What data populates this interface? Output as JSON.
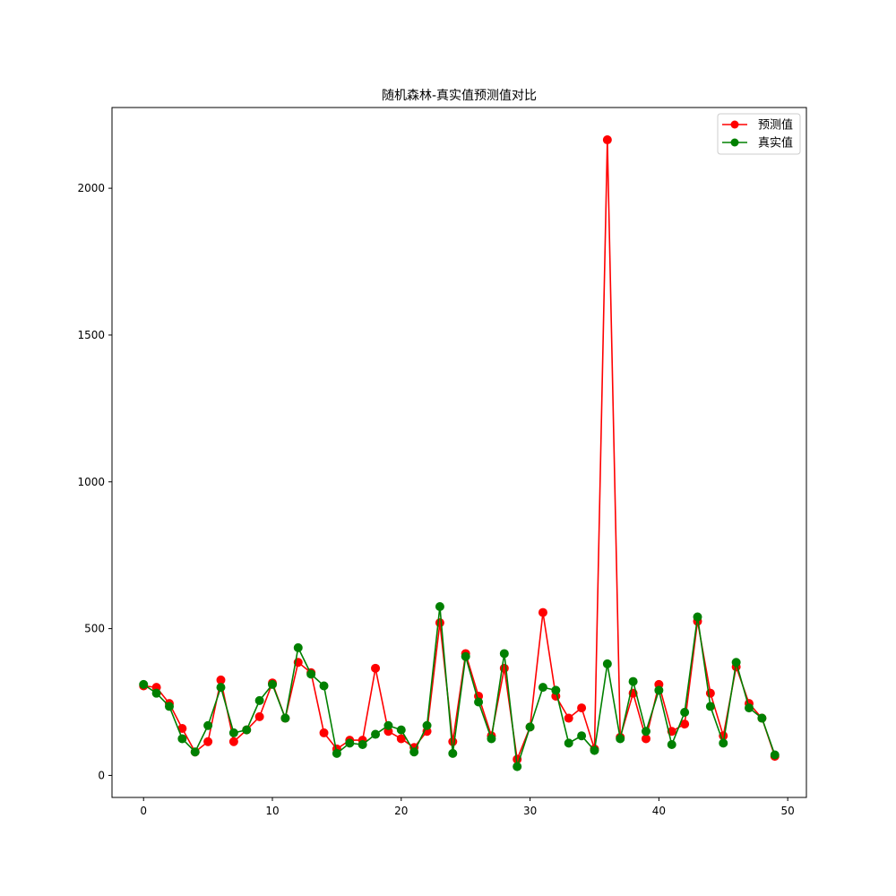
{
  "chart_data": {
    "type": "line",
    "title": "随机森林-真实值预测值对比",
    "xlabel": "",
    "ylabel": "",
    "xlim": [
      -2.45,
      51.45
    ],
    "ylim": [
      -75,
      2275
    ],
    "xticks": [
      0,
      10,
      20,
      30,
      40,
      50
    ],
    "yticks": [
      0,
      500,
      1000,
      1500,
      2000
    ],
    "x": [
      0,
      1,
      2,
      3,
      4,
      5,
      6,
      7,
      8,
      9,
      10,
      11,
      12,
      13,
      14,
      15,
      16,
      17,
      18,
      19,
      20,
      21,
      22,
      23,
      24,
      25,
      26,
      27,
      28,
      29,
      30,
      31,
      32,
      33,
      34,
      35,
      36,
      37,
      38,
      39,
      40,
      41,
      42,
      43,
      44,
      45,
      46,
      47,
      48,
      49
    ],
    "grid": false,
    "legend_position": "top-right",
    "series": [
      {
        "name": "预测值",
        "color": "#ff0000",
        "marker": "circle",
        "values": [
          305,
          300,
          245,
          160,
          80,
          115,
          325,
          115,
          155,
          200,
          315,
          195,
          385,
          350,
          145,
          90,
          120,
          120,
          365,
          150,
          125,
          95,
          150,
          520,
          115,
          415,
          270,
          135,
          365,
          55,
          165,
          555,
          270,
          195,
          230,
          90,
          2165,
          130,
          280,
          125,
          310,
          150,
          175,
          525,
          280,
          135,
          370,
          245,
          195,
          65
        ]
      },
      {
        "name": "真实值",
        "color": "#008000",
        "marker": "circle",
        "values": [
          310,
          280,
          235,
          125,
          80,
          170,
          300,
          145,
          155,
          255,
          310,
          195,
          435,
          345,
          305,
          75,
          110,
          105,
          140,
          170,
          155,
          80,
          170,
          575,
          75,
          405,
          250,
          125,
          415,
          30,
          165,
          300,
          290,
          110,
          135,
          85,
          380,
          125,
          320,
          150,
          290,
          105,
          215,
          540,
          235,
          110,
          385,
          230,
          195,
          70
        ]
      }
    ]
  }
}
